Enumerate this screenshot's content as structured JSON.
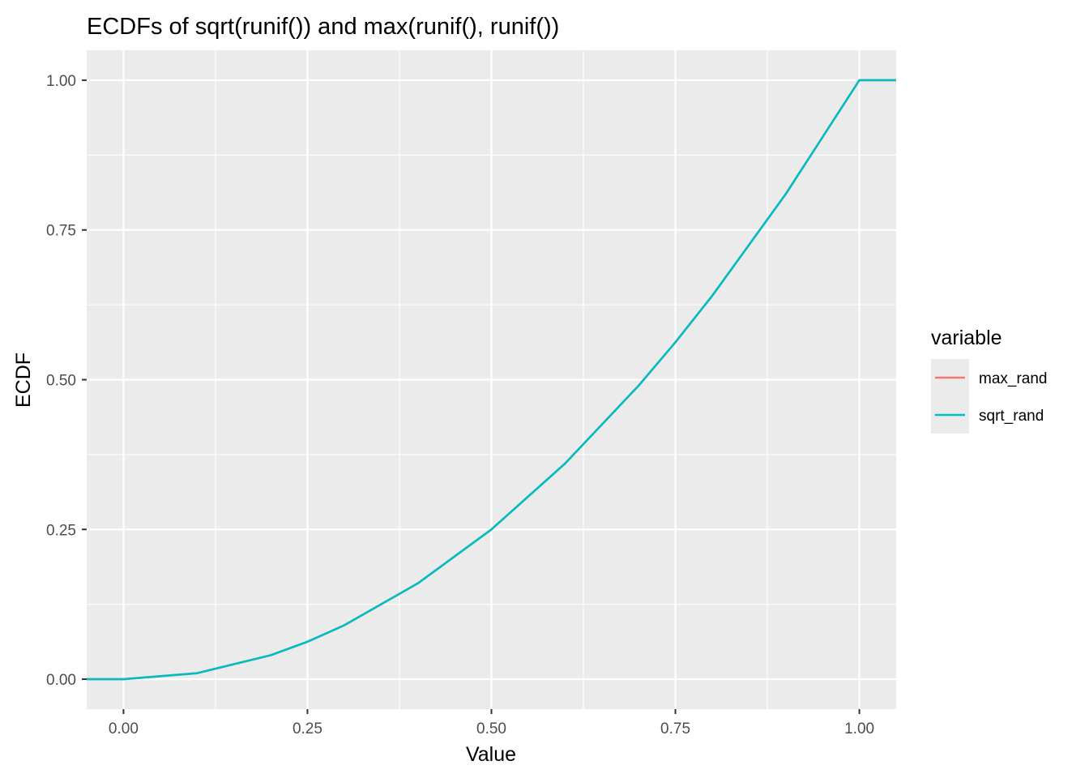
{
  "chart_data": {
    "type": "line",
    "title": "ECDFs of sqrt(runif()) and max(runif(), runif())",
    "xlabel": "Value",
    "ylabel": "ECDF",
    "xlim": [
      -0.05,
      1.05
    ],
    "ylim": [
      -0.05,
      1.05
    ],
    "x_ticks": [
      0.0,
      0.25,
      0.5,
      0.75,
      1.0
    ],
    "x_tick_labels": [
      "0.00",
      "0.25",
      "0.50",
      "0.75",
      "1.00"
    ],
    "y_ticks": [
      0.0,
      0.25,
      0.5,
      0.75,
      1.0
    ],
    "y_tick_labels": [
      "0.00",
      "0.25",
      "0.50",
      "0.75",
      "1.00"
    ],
    "grid": true,
    "legend": {
      "title": "variable",
      "position": "right"
    },
    "series": [
      {
        "name": "max_rand",
        "color": "#F8766D",
        "x": [
          -0.05,
          0.0,
          0.1,
          0.2,
          0.25,
          0.3,
          0.4,
          0.5,
          0.6,
          0.7,
          0.75,
          0.8,
          0.9,
          1.0,
          1.05
        ],
        "y": [
          0.0,
          0.0,
          0.01,
          0.04,
          0.0625,
          0.09,
          0.16,
          0.25,
          0.36,
          0.49,
          0.5625,
          0.64,
          0.81,
          1.0,
          1.0
        ]
      },
      {
        "name": "sqrt_rand",
        "color": "#00BFC4",
        "x": [
          -0.05,
          0.0,
          0.1,
          0.2,
          0.25,
          0.3,
          0.4,
          0.5,
          0.6,
          0.7,
          0.75,
          0.8,
          0.9,
          1.0,
          1.05
        ],
        "y": [
          0.0,
          0.0,
          0.01,
          0.04,
          0.0625,
          0.09,
          0.16,
          0.25,
          0.36,
          0.49,
          0.5625,
          0.64,
          0.81,
          1.0,
          1.0
        ]
      }
    ]
  }
}
